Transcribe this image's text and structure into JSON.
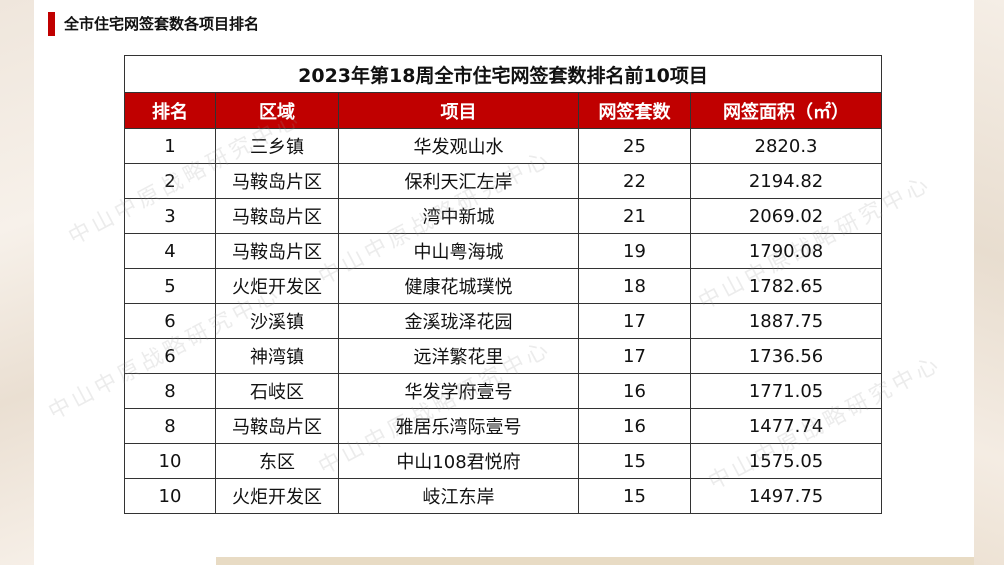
{
  "page_title": "全市住宅网签套数各项目排名",
  "table": {
    "caption": "2023年第18周全市住宅网签套数排名前10项目",
    "headers": [
      "排名",
      "区域",
      "项目",
      "网签套数",
      "网签面积（㎡）"
    ],
    "rows": [
      {
        "rank": "1",
        "area": "三乡镇",
        "project": "华发观山水",
        "units": "25",
        "size": "2820.3"
      },
      {
        "rank": "2",
        "area": "马鞍岛片区",
        "project": "保利天汇左岸",
        "units": "22",
        "size": "2194.82"
      },
      {
        "rank": "3",
        "area": "马鞍岛片区",
        "project": "湾中新城",
        "units": "21",
        "size": "2069.02"
      },
      {
        "rank": "4",
        "area": "马鞍岛片区",
        "project": "中山粤海城",
        "units": "19",
        "size": "1790.08"
      },
      {
        "rank": "5",
        "area": "火炬开发区",
        "project": "健康花城璞悦",
        "units": "18",
        "size": "1782.65"
      },
      {
        "rank": "6",
        "area": "沙溪镇",
        "project": "金溪珑泽花园",
        "units": "17",
        "size": "1887.75"
      },
      {
        "rank": "6",
        "area": "神湾镇",
        "project": "远洋繁花里",
        "units": "17",
        "size": "1736.56"
      },
      {
        "rank": "8",
        "area": "石岐区",
        "project": "华发学府壹号",
        "units": "16",
        "size": "1771.05"
      },
      {
        "rank": "8",
        "area": "马鞍岛片区",
        "project": "雅居乐湾际壹号",
        "units": "16",
        "size": "1477.74"
      },
      {
        "rank": "10",
        "area": "东区",
        "project": "中山108君悦府",
        "units": "15",
        "size": "1575.05"
      },
      {
        "rank": "10",
        "area": "火炬开发区",
        "project": "岐江东岸",
        "units": "15",
        "size": "1497.75"
      }
    ]
  },
  "watermark_text": "中山中原战略研究中心",
  "colors": {
    "accent": "#c00000",
    "header_text": "#ffffff"
  }
}
